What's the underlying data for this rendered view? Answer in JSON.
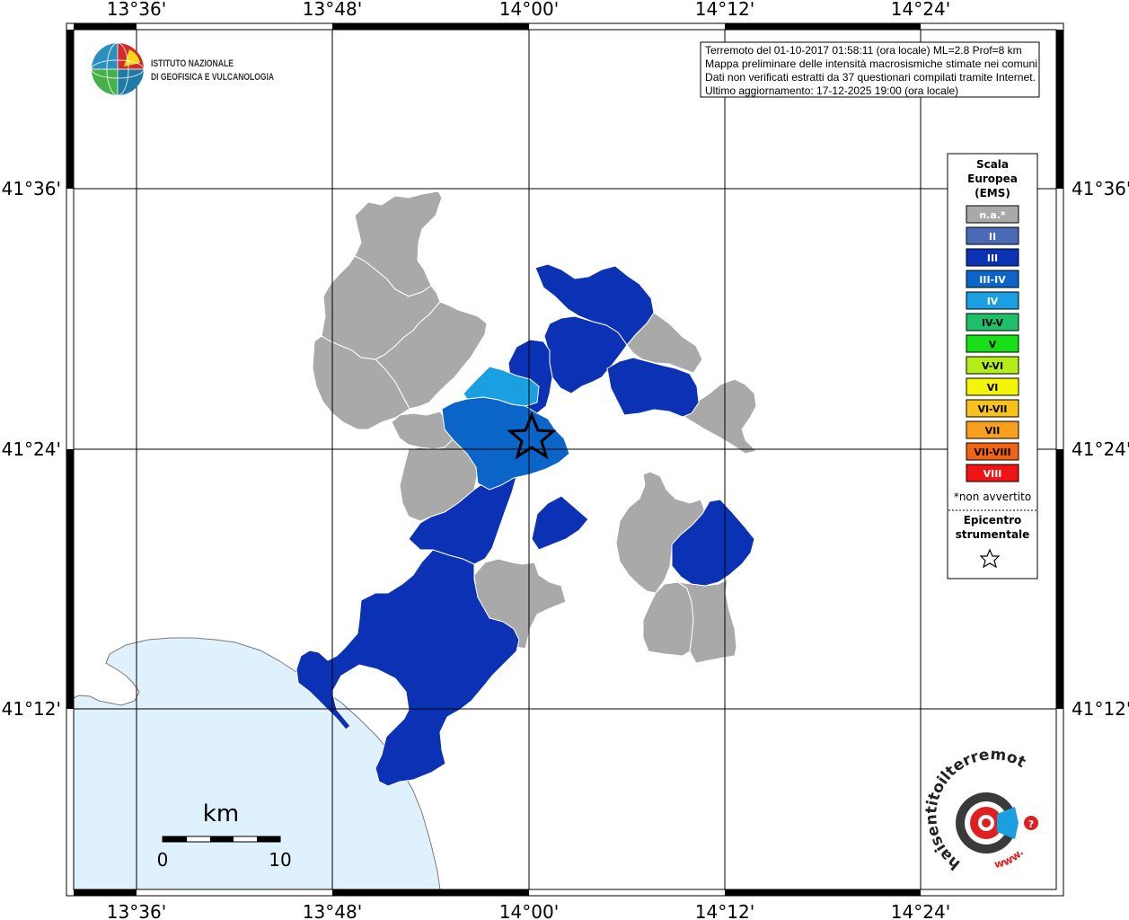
{
  "map": {
    "longitude_ticks": [
      "13°36'",
      "13°48'",
      "14°00'",
      "14°12'",
      "14°24'"
    ],
    "latitude_ticks": [
      "41°36'",
      "41°24'",
      "41°12'"
    ]
  },
  "logo": {
    "line1": "ISTITUTO NAZIONALE",
    "line2": "DI GEOFISICA E VULCANOLOGIA"
  },
  "info_box": {
    "lines": [
      "Terremoto del 01-10-2017 01:58:11 (ora locale) ML=2.8 Prof=8 km",
      "Mappa preliminare delle intensità macrosismiche stimate nei comuni",
      "Dati non verificati estratti da 37 questionari compilati tramite Internet.",
      "Ultimo aggiornamento: 17-12-2025 19:00 (ora locale)"
    ]
  },
  "legend": {
    "title": [
      "Scala",
      "Europea",
      "(EMS)"
    ],
    "classes": [
      {
        "label": "n.a.*",
        "color": "#a9a9a9",
        "text_color": "#ffffff"
      },
      {
        "label": "II",
        "color": "#4a6ab5",
        "text_color": "#ffffff"
      },
      {
        "label": "III",
        "color": "#0b32b4",
        "text_color": "#ffffff"
      },
      {
        "label": "III-IV",
        "color": "#0b64c8",
        "text_color": "#ffffff"
      },
      {
        "label": "IV",
        "color": "#1a9fe0",
        "text_color": "#ffffff"
      },
      {
        "label": "IV-V",
        "color": "#1fc06a",
        "text_color": "#000000"
      },
      {
        "label": "V",
        "color": "#18e018",
        "text_color": "#000000"
      },
      {
        "label": "V-VI",
        "color": "#b4ee18",
        "text_color": "#000000"
      },
      {
        "label": "VI",
        "color": "#f5f50a",
        "text_color": "#000000"
      },
      {
        "label": "VI-VII",
        "color": "#f7c21a",
        "text_color": "#000000"
      },
      {
        "label": "VII",
        "color": "#f7a01e",
        "text_color": "#000000"
      },
      {
        "label": "VII-VIII",
        "color": "#f06414",
        "text_color": "#000000"
      },
      {
        "label": "VIII",
        "color": "#f01414",
        "text_color": "#ffffff"
      }
    ],
    "note": "*non avvertito",
    "epicenter_title": [
      "Epicentro",
      "strumentale"
    ]
  },
  "scale_bar": {
    "unit": "km",
    "min_label": "0",
    "max_label": "10"
  },
  "colors": {
    "sea": "#dff1fc",
    "coast": "#7a7a7a",
    "grid": "#000000",
    "not_felt": "#a9a9a9",
    "intensity_III": "#0b32b4",
    "intensity_III_IV": "#0b64c8",
    "intensity_IV": "#1a9fe0"
  },
  "hsit_logo": {
    "text": "haisentitoilterremoto.it",
    "url_text": "www."
  }
}
